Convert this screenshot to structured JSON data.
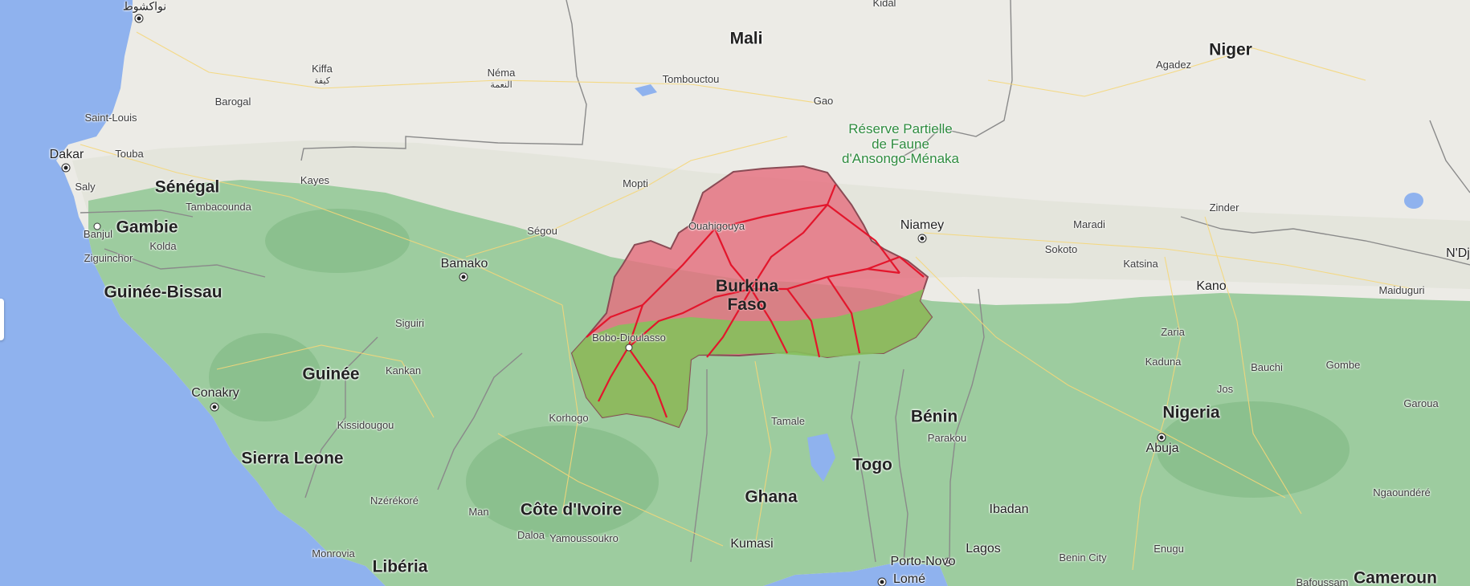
{
  "map": {
    "region": "West Africa",
    "highlighted_country": "Burkina Faso",
    "colors": {
      "ocean": "#8fb2ee",
      "desert": "#ecebe6",
      "vegetation": "#9dcc9f",
      "highlight_fill": "#e56f7f",
      "highlight_roads": "#e3162c"
    },
    "countries": {
      "mali": "Mali",
      "niger": "Niger",
      "senegal": "Sénégal",
      "gambie": "Gambie",
      "guinee_bissau": "Guinée-Bissau",
      "guinee": "Guinée",
      "sierra_leone": "Sierra Leone",
      "liberia": "Libéria",
      "cote_divoire": "Côte d'Ivoire",
      "ghana": "Ghana",
      "togo": "Togo",
      "benin": "Bénin",
      "nigeria": "Nigeria",
      "cameroun": "Cameroun",
      "burkina_line1": "Burkina",
      "burkina_line2": "Faso"
    },
    "reserve": {
      "line1": "Réserve Partielle",
      "line2": "de Faune",
      "line3": "d'Ansongo-Ménaka"
    },
    "capitals": {
      "nouakchott": "نواكشوط",
      "dakar": "Dakar",
      "banjul": "Banjul",
      "bamako": "Bamako",
      "conakry": "Conakry",
      "niamey": "Niamey",
      "abuja": "Abuja",
      "porto_novo": "Porto-Novo",
      "lome": "Lomé"
    },
    "cities": {
      "kidal": "Kidal",
      "kiffa": "Kiffa",
      "kiffa_ar": "كيفة",
      "nema": "Néma",
      "nema_ar": "النعمة",
      "tombouctou": "Tombouctou",
      "agadez": "Agadez",
      "barogal": "Barogal",
      "saint_louis": "Saint-Louis",
      "gao": "Gao",
      "touba": "Touba",
      "saly": "Saly",
      "kayes": "Kayes",
      "tambacounda": "Tambacounda",
      "mopti": "Mopti",
      "ouahigouya": "Ouahigouya",
      "kolda": "Kolda",
      "ziguinchor": "Ziguinchor",
      "segou": "Ségou",
      "zinder": "Zinder",
      "maradi": "Maradi",
      "sokoto": "Sokoto",
      "ndjamena": "N'Dj",
      "katsina": "Katsina",
      "kano": "Kano",
      "maiduguri": "Maiduguri",
      "siguiri": "Siguiri",
      "bobo_dioulasso": "Bobo-Dioulasso",
      "kankan": "Kankan",
      "zaria": "Zaria",
      "kaduna": "Kaduna",
      "bauchi": "Bauchi",
      "gombe": "Gombe",
      "jos": "Jos",
      "garoua": "Garoua",
      "tamale": "Tamale",
      "korhogo": "Korhogo",
      "kissidougou": "Kissidougou",
      "parakou": "Parakou",
      "nzerekore": "Nzérékoré",
      "man": "Man",
      "ngaoundere": "Ngaoundéré",
      "ibadan": "Ibadan",
      "daloa": "Daloa",
      "yamoussoukro": "Yamoussoukro",
      "kumasi": "Kumasi",
      "enugu": "Enugu",
      "monrovia": "Monrovia",
      "lagos": "Lagos",
      "benin_city": "Benin City",
      "bafoussam": "Bafoussam"
    }
  }
}
